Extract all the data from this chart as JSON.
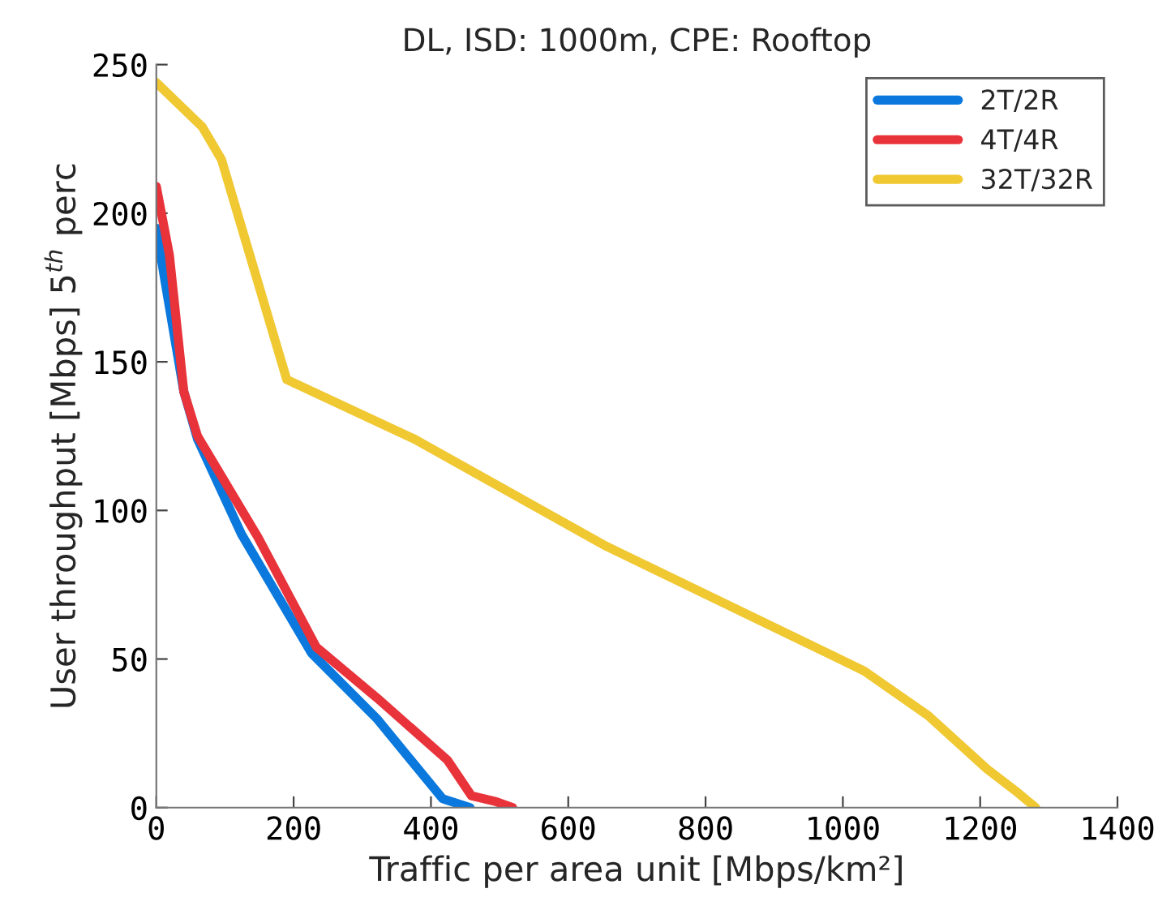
{
  "chart_data": {
    "type": "line",
    "title": "DL, ISD: 1000m, CPE: Rooftop",
    "xlabel": "Traffic per area unit [Mbps/km²]",
    "ylabel": "User throughput [Mbps] 5$^{th}$ perc",
    "series": [
      {
        "name": "2T/2R",
        "color": "#0a78dc",
        "x": [
          0,
          12,
          40,
          60,
          124,
          226,
          321,
          417,
          457
        ],
        "values": [
          195,
          178,
          140,
          124,
          92,
          52,
          30,
          3,
          0
        ]
      },
      {
        "name": "4T/4R",
        "color": "#e8333a",
        "x": [
          0,
          19,
          40,
          60,
          148,
          233,
          321,
          424,
          459,
          495,
          519
        ],
        "values": [
          209,
          186,
          140,
          125,
          91,
          54,
          37,
          16,
          4,
          2,
          0
        ]
      },
      {
        "name": "32T/32R",
        "color": "#f0c832",
        "x": [
          0,
          67,
          95,
          190,
          376,
          655,
          1031,
          1124,
          1210,
          1255,
          1281
        ],
        "values": [
          244,
          229,
          218,
          144,
          124,
          88,
          46,
          31,
          13,
          5,
          0
        ]
      }
    ],
    "xlim": [
      0,
      1400
    ],
    "ylim": [
      0,
      250
    ],
    "xticks": [
      0,
      200,
      400,
      600,
      800,
      1000,
      1200,
      1400
    ],
    "yticks": [
      0,
      50,
      100,
      150,
      200,
      250
    ],
    "legend": "top right",
    "grid": false
  }
}
